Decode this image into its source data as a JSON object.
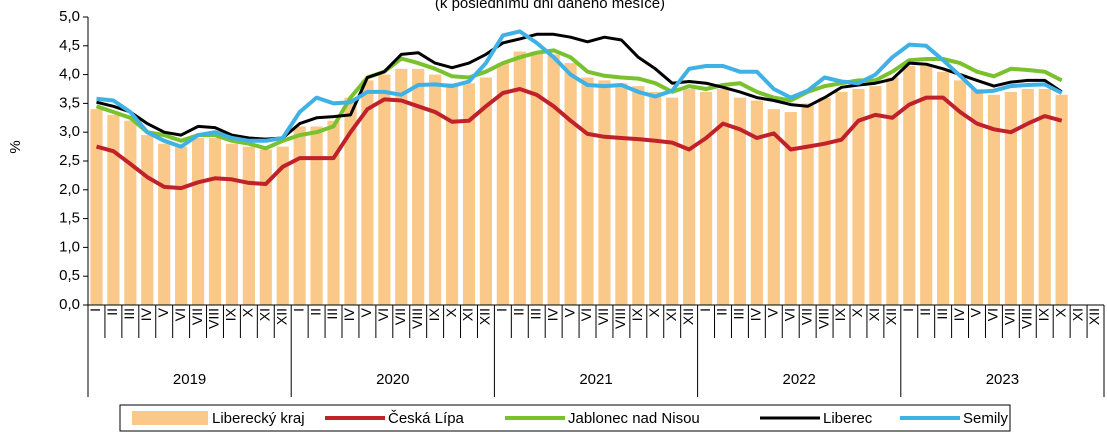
{
  "chart_data": {
    "type": "combo",
    "subtitle": "(k poslednímu dni daného měsíce)",
    "y_label": "%",
    "categories": [
      "I",
      "II",
      "III",
      "IV",
      "V",
      "VI",
      "VII",
      "VIII",
      "IX",
      "X",
      "XI",
      "XII",
      "I",
      "II",
      "III",
      "IV",
      "V",
      "VI",
      "VII",
      "VIII",
      "IX",
      "X",
      "XI",
      "XII",
      "I",
      "II",
      "III",
      "IV",
      "V",
      "VI",
      "VII",
      "VIII",
      "IX",
      "X",
      "XI",
      "XII",
      "I",
      "II",
      "III",
      "IV",
      "V",
      "VI",
      "VII",
      "VIII",
      "IX",
      "X",
      "XI",
      "XII",
      "I",
      "II",
      "III",
      "IV",
      "V",
      "VI",
      "VII",
      "VIII",
      "IX",
      "X",
      "XI",
      "XII"
    ],
    "year_groups": [
      "2019",
      "2020",
      "2021",
      "2022",
      "2023"
    ],
    "ylim": [
      0,
      5
    ],
    "yticks": [
      {
        "value": 0,
        "label": "0,0"
      },
      {
        "value": 0.5,
        "label": "0,5"
      },
      {
        "value": 1,
        "label": "1,0"
      },
      {
        "value": 1.5,
        "label": "1,5"
      },
      {
        "value": 2,
        "label": "2,0"
      },
      {
        "value": 2.5,
        "label": "2,5"
      },
      {
        "value": 3,
        "label": "3,0"
      },
      {
        "value": 3.5,
        "label": "3,5"
      },
      {
        "value": 4,
        "label": "4,0"
      },
      {
        "value": 4.5,
        "label": "4,5"
      },
      {
        "value": 5,
        "label": "5,0"
      }
    ],
    "grid": false,
    "legend": "bottom",
    "series": [
      {
        "name": "Liberecký kraj",
        "type": "bar",
        "color": "#fac98a",
        "values": [
          3.4,
          3.3,
          3.2,
          2.95,
          2.8,
          2.75,
          2.9,
          2.9,
          2.8,
          2.75,
          2.7,
          2.75,
          3.1,
          3.1,
          3.2,
          3.6,
          3.9,
          4.0,
          4.1,
          4.1,
          4.0,
          3.85,
          3.85,
          3.95,
          4.2,
          4.4,
          4.4,
          4.35,
          4.2,
          3.95,
          3.9,
          3.85,
          3.8,
          3.7,
          3.6,
          3.75,
          3.7,
          3.75,
          3.6,
          3.55,
          3.4,
          3.35,
          3.5,
          3.6,
          3.7,
          3.75,
          3.8,
          3.95,
          4.15,
          4.15,
          4.05,
          3.9,
          3.75,
          3.65,
          3.7,
          3.75,
          3.75,
          3.65,
          null,
          null
        ]
      },
      {
        "name": "Česká Lípa",
        "type": "line",
        "color": "#c0212a",
        "values": [
          2.75,
          2.67,
          2.45,
          2.22,
          2.05,
          2.03,
          2.13,
          2.2,
          2.18,
          2.12,
          2.1,
          2.4,
          2.55,
          2.55,
          2.55,
          3.0,
          3.4,
          3.57,
          3.55,
          3.45,
          3.35,
          3.18,
          3.2,
          3.45,
          3.68,
          3.75,
          3.65,
          3.45,
          3.2,
          2.97,
          2.92,
          2.9,
          2.88,
          2.85,
          2.82,
          2.7,
          2.9,
          3.15,
          3.05,
          2.9,
          2.98,
          2.7,
          2.75,
          2.8,
          2.87,
          3.2,
          3.3,
          3.25,
          3.48,
          3.6,
          3.6,
          3.35,
          3.15,
          3.05,
          3.0,
          3.15,
          3.28,
          3.2,
          null,
          null
        ]
      },
      {
        "name": "Jablonec nad Nisou",
        "type": "line",
        "color": "#79c12d",
        "values": [
          3.45,
          3.35,
          3.25,
          3.0,
          2.95,
          2.85,
          2.95,
          2.95,
          2.85,
          2.8,
          2.72,
          2.85,
          2.95,
          3.0,
          3.1,
          3.6,
          3.95,
          4.05,
          4.28,
          4.2,
          4.1,
          3.97,
          3.95,
          4.05,
          4.2,
          4.3,
          4.38,
          4.42,
          4.3,
          4.05,
          3.98,
          3.95,
          3.93,
          3.85,
          3.7,
          3.8,
          3.75,
          3.82,
          3.85,
          3.7,
          3.6,
          3.55,
          3.7,
          3.8,
          3.85,
          3.9,
          3.9,
          4.05,
          4.25,
          4.27,
          4.27,
          4.2,
          4.05,
          3.97,
          4.1,
          4.08,
          4.05,
          3.9,
          null,
          null
        ]
      },
      {
        "name": "Liberec",
        "type": "line",
        "color": "#000000",
        "values": [
          3.52,
          3.45,
          3.35,
          3.15,
          3.0,
          2.95,
          3.1,
          3.08,
          2.95,
          2.9,
          2.88,
          2.9,
          3.15,
          3.25,
          3.27,
          3.3,
          3.95,
          4.05,
          4.35,
          4.38,
          4.2,
          4.12,
          4.2,
          4.35,
          4.55,
          4.62,
          4.7,
          4.7,
          4.65,
          4.57,
          4.65,
          4.6,
          4.3,
          4.1,
          3.85,
          3.88,
          3.85,
          3.78,
          3.7,
          3.6,
          3.55,
          3.48,
          3.45,
          3.6,
          3.78,
          3.82,
          3.85,
          3.92,
          4.2,
          4.18,
          4.1,
          4.0,
          3.9,
          3.8,
          3.87,
          3.9,
          3.9,
          3.7,
          null,
          null
        ]
      },
      {
        "name": "Semily",
        "type": "line",
        "color": "#3fb1e5",
        "values": [
          3.58,
          3.55,
          3.35,
          3.0,
          2.85,
          2.75,
          2.95,
          3.0,
          2.9,
          2.85,
          2.85,
          2.9,
          3.35,
          3.6,
          3.5,
          3.52,
          3.7,
          3.7,
          3.65,
          3.82,
          3.83,
          3.8,
          3.88,
          4.2,
          4.68,
          4.75,
          4.55,
          4.3,
          4.0,
          3.82,
          3.8,
          3.82,
          3.7,
          3.62,
          3.72,
          4.1,
          4.15,
          4.15,
          4.05,
          4.05,
          3.75,
          3.6,
          3.72,
          3.95,
          3.88,
          3.85,
          4.0,
          4.3,
          4.52,
          4.5,
          4.25,
          3.98,
          3.7,
          3.72,
          3.8,
          3.82,
          3.83,
          3.68,
          null,
          null
        ]
      }
    ]
  }
}
